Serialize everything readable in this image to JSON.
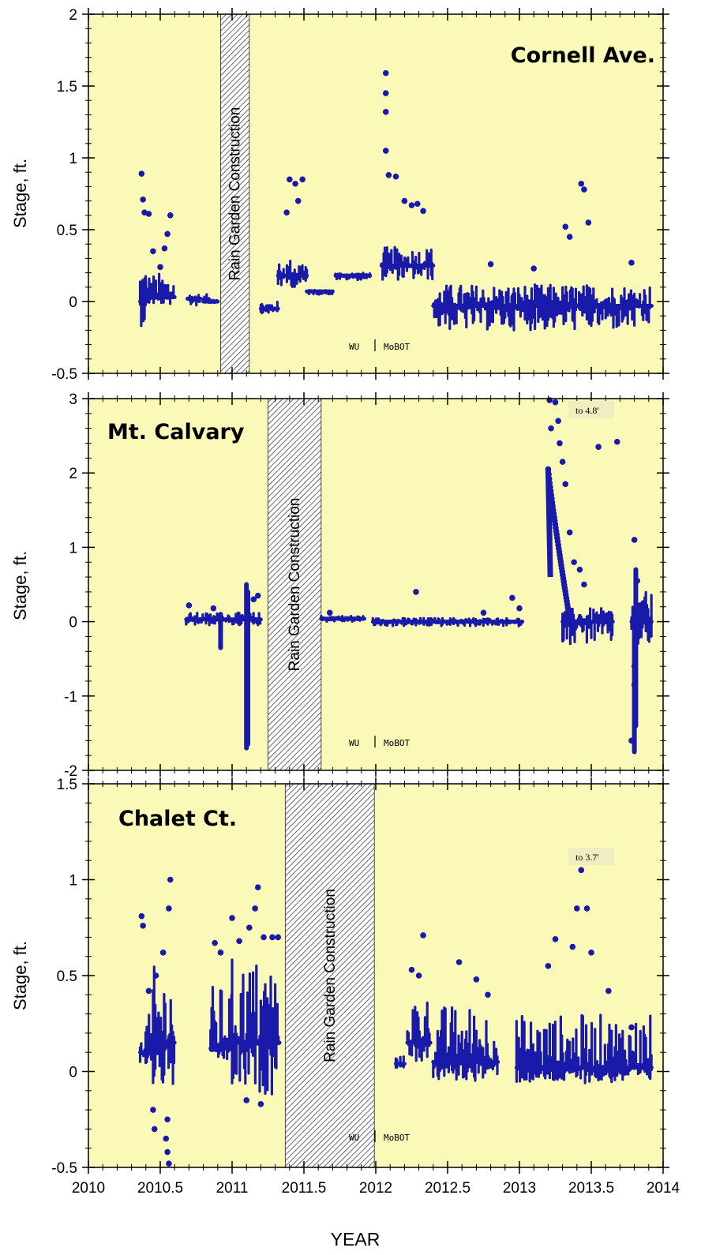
{
  "chart_data": [
    {
      "type": "scatter",
      "title": "Cornell Ave.",
      "ylabel": "Stage, ft.",
      "xlabel": "",
      "xlim": [
        2010,
        2014
      ],
      "ylim": [
        -0.5,
        2
      ],
      "yticks": [
        -0.5,
        0,
        0.5,
        1,
        1.5,
        2
      ],
      "ytick_labels": [
        "-0.5",
        "0",
        "0.5",
        "1",
        "1.5",
        "2"
      ],
      "marker_color": "#1a1aaa",
      "background_color": "#fbf9b7",
      "construction_band": {
        "x": [
          2010.92,
          2011.12
        ],
        "label": "Rain Garden Construction"
      },
      "legend_note": {
        "left": "WU",
        "right": "MoBOT"
      },
      "segments": [
        {
          "x": [
            2010.36,
            2010.4
          ],
          "y_low": -0.17,
          "y_high": 0.32,
          "base": 0.0
        },
        {
          "x": [
            2010.4,
            2010.6
          ],
          "y_low": -0.02,
          "y_high": 0.2,
          "base": 0.03
        },
        {
          "x": [
            2010.69,
            2010.78
          ],
          "y_low": -0.03,
          "y_high": 0.05,
          "base": 0.02
        },
        {
          "x": [
            2010.8,
            2010.9
          ],
          "y_low": -0.01,
          "y_high": 0.05,
          "base": 0.0
        },
        {
          "x": [
            2011.2,
            2011.32
          ],
          "y_low": -0.08,
          "y_high": 0.0,
          "base": -0.05
        },
        {
          "x": [
            2011.32,
            2011.52
          ],
          "y_low": 0.1,
          "y_high": 0.3,
          "base": 0.18
        },
        {
          "x": [
            2011.52,
            2011.7
          ],
          "y_low": 0.05,
          "y_high": 0.08,
          "base": 0.07
        },
        {
          "x": [
            2011.72,
            2011.96
          ],
          "y_low": 0.15,
          "y_high": 0.2,
          "base": 0.18
        },
        {
          "x": [
            2012.04,
            2012.4
          ],
          "y_low": 0.15,
          "y_high": 0.38,
          "base": 0.25
        },
        {
          "x": [
            2012.4,
            2013.92
          ],
          "y_low": -0.2,
          "y_high": 0.12,
          "base": -0.03
        }
      ],
      "peaks": [
        [
          2010.37,
          0.89
        ],
        [
          2010.38,
          0.71
        ],
        [
          2010.39,
          0.62
        ],
        [
          2010.42,
          0.61
        ],
        [
          2010.45,
          0.35
        ],
        [
          2010.5,
          0.24
        ],
        [
          2010.53,
          0.37
        ],
        [
          2010.55,
          0.47
        ],
        [
          2010.57,
          0.6
        ],
        [
          2011.38,
          0.62
        ],
        [
          2011.4,
          0.85
        ],
        [
          2011.44,
          0.82
        ],
        [
          2011.46,
          0.7
        ],
        [
          2011.49,
          0.85
        ],
        [
          2012.07,
          1.59
        ],
        [
          2012.07,
          1.45
        ],
        [
          2012.07,
          1.32
        ],
        [
          2012.07,
          1.05
        ],
        [
          2012.09,
          0.88
        ],
        [
          2012.14,
          0.87
        ],
        [
          2012.2,
          0.7
        ],
        [
          2012.25,
          0.67
        ],
        [
          2012.29,
          0.68
        ],
        [
          2012.33,
          0.63
        ],
        [
          2012.8,
          0.26
        ],
        [
          2013.1,
          0.23
        ],
        [
          2013.32,
          0.52
        ],
        [
          2013.35,
          0.45
        ],
        [
          2013.43,
          0.82
        ],
        [
          2013.45,
          0.78
        ],
        [
          2013.48,
          0.55
        ],
        [
          2013.78,
          0.27
        ]
      ]
    },
    {
      "type": "scatter",
      "title": "Mt. Calvary",
      "ylabel": "Stage, ft.",
      "xlabel": "",
      "xlim": [
        2010,
        2014
      ],
      "ylim": [
        -2,
        3
      ],
      "yticks": [
        -2,
        -1,
        0,
        1,
        2,
        3
      ],
      "ytick_labels": [
        "-2",
        "-1",
        "0",
        "1",
        "2",
        "3"
      ],
      "marker_color": "#1a1aaa",
      "background_color": "#fbf9b7",
      "construction_band": {
        "x": [
          2011.25,
          2011.62
        ],
        "label": "Rain Garden Construction"
      },
      "legend_note": {
        "left": "WU",
        "right": "MoBOT"
      },
      "annotation": {
        "text": "to 4.8'",
        "x": 2013.33,
        "y": 2.85
      },
      "segments": [
        {
          "x": [
            2010.68,
            2011.2
          ],
          "y_low": -0.05,
          "y_high": 0.12,
          "base": 0.03
        },
        {
          "x": [
            2011.62,
            2011.92
          ],
          "y_low": 0.0,
          "y_high": 0.08,
          "base": 0.04
        },
        {
          "x": [
            2011.98,
            2013.02
          ],
          "y_low": -0.06,
          "y_high": 0.05,
          "base": 0.0
        },
        {
          "x": [
            2013.3,
            2013.65
          ],
          "y_low": -0.3,
          "y_high": 0.18,
          "base": 0.0
        },
        {
          "x": [
            2013.78,
            2013.92
          ],
          "y_low": -0.35,
          "y_high": 0.4,
          "base": 0.0
        }
      ],
      "bars": [
        {
          "x": 2010.92,
          "y_low": -0.35,
          "y_high": 0.1
        },
        {
          "x": 2011.1,
          "y_low": -1.7,
          "y_high": 0.5
        },
        {
          "x": 2011.11,
          "y_low": -1.65,
          "y_high": 0.4
        },
        {
          "x": 2013.8,
          "y_low": -1.75,
          "y_high": 0.1
        },
        {
          "x": 2013.81,
          "y_low": -1.4,
          "y_high": 0.7
        }
      ],
      "peaks": [
        [
          2010.7,
          0.22
        ],
        [
          2010.87,
          0.18
        ],
        [
          2011.15,
          0.3
        ],
        [
          2011.18,
          0.35
        ],
        [
          2011.68,
          0.12
        ],
        [
          2012.28,
          0.4
        ],
        [
          2012.75,
          0.12
        ],
        [
          2012.95,
          0.32
        ],
        [
          2013.0,
          0.18
        ],
        [
          2013.21,
          2.98
        ],
        [
          2013.22,
          2.6
        ],
        [
          2013.25,
          2.95
        ],
        [
          2013.27,
          2.7
        ],
        [
          2013.28,
          2.4
        ],
        [
          2013.3,
          2.15
        ],
        [
          2013.32,
          1.85
        ],
        [
          2013.35,
          1.2
        ],
        [
          2013.38,
          0.8
        ],
        [
          2013.42,
          0.7
        ],
        [
          2013.45,
          0.5
        ],
        [
          2013.55,
          2.35
        ],
        [
          2013.68,
          2.42
        ],
        [
          2013.8,
          1.1
        ],
        [
          2013.82,
          0.55
        ],
        [
          2013.78,
          -1.6
        ],
        [
          2013.8,
          -0.85
        ],
        [
          2013.8,
          -0.6
        ]
      ],
      "ramp": {
        "x": [
          2013.2,
          2013.34
        ],
        "y_start": 2.05,
        "y_end": 0.15
      }
    },
    {
      "type": "scatter",
      "title": "Chalet Ct.",
      "ylabel": "Stage, ft.",
      "xlabel": "YEAR",
      "xlim": [
        2010,
        2014
      ],
      "ylim": [
        -0.5,
        1.5
      ],
      "yticks": [
        -0.5,
        0,
        0.5,
        1,
        1.5
      ],
      "ytick_labels": [
        "-0.5",
        "0",
        "0.5",
        "1",
        "1.5"
      ],
      "xticks": [
        2010,
        2010.5,
        2011,
        2011.5,
        2012,
        2012.5,
        2013,
        2013.5,
        2014
      ],
      "xtick_labels": [
        "2010",
        "2010.5",
        "2011",
        "2011.5",
        "2012",
        "2012.5",
        "2013",
        "2013.5",
        "2014"
      ],
      "marker_color": "#1a1aaa",
      "background_color": "#fbf9b7",
      "construction_band": {
        "x": [
          2011.37,
          2011.99
        ],
        "label": "Rain Garden Construction"
      },
      "legend_note": {
        "left": "WU",
        "right": "MoBOT"
      },
      "annotation": {
        "text": "to 3.7'",
        "x": 2013.33,
        "y": 1.29
      },
      "segments": [
        {
          "x": [
            2010.36,
            2010.45
          ],
          "y_low": 0.02,
          "y_high": 0.3,
          "base": 0.1
        },
        {
          "x": [
            2010.45,
            2010.6
          ],
          "y_low": -0.1,
          "y_high": 0.55,
          "base": 0.15
        },
        {
          "x": [
            2010.85,
            2011.0
          ],
          "y_low": 0.05,
          "y_high": 0.45,
          "base": 0.12
        },
        {
          "x": [
            2011.0,
            2011.33
          ],
          "y_low": -0.12,
          "y_high": 0.6,
          "base": 0.15
        },
        {
          "x": [
            2012.14,
            2012.2
          ],
          "y_low": 0.02,
          "y_high": 0.08,
          "base": 0.04
        },
        {
          "x": [
            2012.22,
            2012.38
          ],
          "y_low": 0.05,
          "y_high": 0.4,
          "base": 0.15
        },
        {
          "x": [
            2012.4,
            2012.85
          ],
          "y_low": -0.05,
          "y_high": 0.35,
          "base": 0.05
        },
        {
          "x": [
            2012.98,
            2013.92
          ],
          "y_low": -0.06,
          "y_high": 0.3,
          "base": 0.02
        }
      ],
      "peaks": [
        [
          2010.37,
          0.81
        ],
        [
          2010.38,
          0.76
        ],
        [
          2010.42,
          0.42
        ],
        [
          2010.47,
          0.5
        ],
        [
          2010.52,
          0.62
        ],
        [
          2010.56,
          0.85
        ],
        [
          2010.57,
          1.0
        ],
        [
          2010.55,
          -0.25
        ],
        [
          2010.54,
          -0.35
        ],
        [
          2010.55,
          -0.42
        ],
        [
          2010.56,
          -0.48
        ],
        [
          2010.45,
          -0.2
        ],
        [
          2010.46,
          -0.3
        ],
        [
          2010.88,
          0.67
        ],
        [
          2010.92,
          0.62
        ],
        [
          2011.0,
          0.8
        ],
        [
          2011.05,
          0.68
        ],
        [
          2011.12,
          0.75
        ],
        [
          2011.16,
          0.85
        ],
        [
          2011.18,
          0.96
        ],
        [
          2011.22,
          0.7
        ],
        [
          2011.28,
          0.7
        ],
        [
          2011.32,
          0.7
        ],
        [
          2011.1,
          -0.15
        ],
        [
          2011.2,
          -0.17
        ],
        [
          2012.25,
          0.53
        ],
        [
          2012.3,
          0.5
        ],
        [
          2012.33,
          0.71
        ],
        [
          2012.58,
          0.57
        ],
        [
          2012.7,
          0.48
        ],
        [
          2012.78,
          0.4
        ],
        [
          2013.2,
          0.55
        ],
        [
          2013.25,
          0.69
        ],
        [
          2013.37,
          0.65
        ],
        [
          2013.4,
          0.85
        ],
        [
          2013.43,
          1.05
        ],
        [
          2013.45,
          1.12
        ],
        [
          2013.47,
          0.85
        ],
        [
          2013.5,
          0.62
        ],
        [
          2013.62,
          0.42
        ],
        [
          2013.78,
          0.23
        ]
      ]
    }
  ]
}
